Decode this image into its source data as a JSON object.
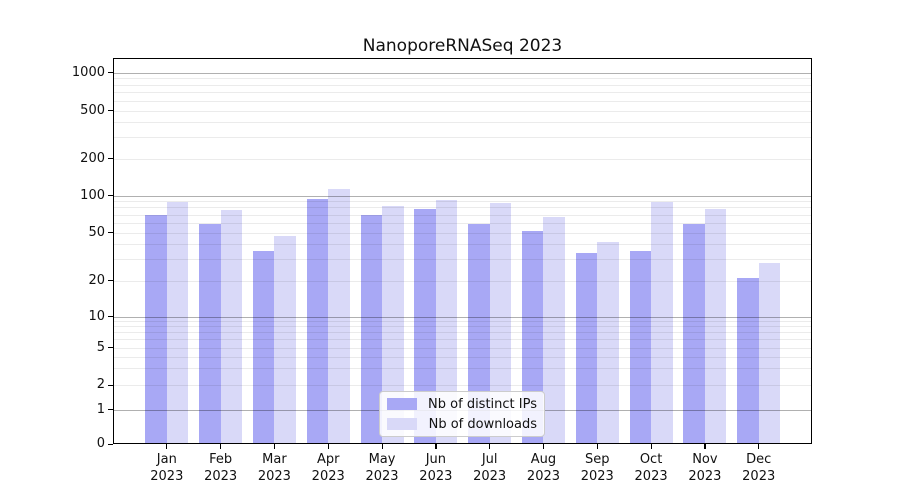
{
  "figure": {
    "title": "NanoporeRNASeq 2023"
  },
  "chart_data": {
    "type": "bar",
    "title": "NanoporeRNASeq 2023",
    "categories": [
      "Jan 2023",
      "Feb 2023",
      "Mar 2023",
      "Apr 2023",
      "May 2023",
      "Jun 2023",
      "Jul 2023",
      "Aug 2023",
      "Sep 2023",
      "Oct 2023",
      "Nov 2023",
      "Dec 2023"
    ],
    "series": [
      {
        "name": "Nb of distinct IPs",
        "color": "#a8a8f5",
        "values": [
          70,
          59,
          35,
          94,
          70,
          78,
          59,
          51,
          34,
          35,
          59,
          21
        ]
      },
      {
        "name": "Nb of downloads",
        "color": "#d9d9f8",
        "values": [
          88,
          76,
          47,
          113,
          82,
          92,
          87,
          67,
          42,
          88,
          78,
          28
        ]
      }
    ],
    "xlabel": "",
    "ylabel": "",
    "yscale": "symlog",
    "yticks": [
      0,
      1,
      2,
      5,
      10,
      20,
      50,
      100,
      200,
      500,
      1000
    ],
    "ylim": [
      0,
      1300
    ],
    "grid": true,
    "gridline_major_color": "#b0b0b0",
    "gridline_minor_color": "#ebebeb",
    "legend_position": "lower center",
    "legend_border_color": "#cccccc"
  }
}
